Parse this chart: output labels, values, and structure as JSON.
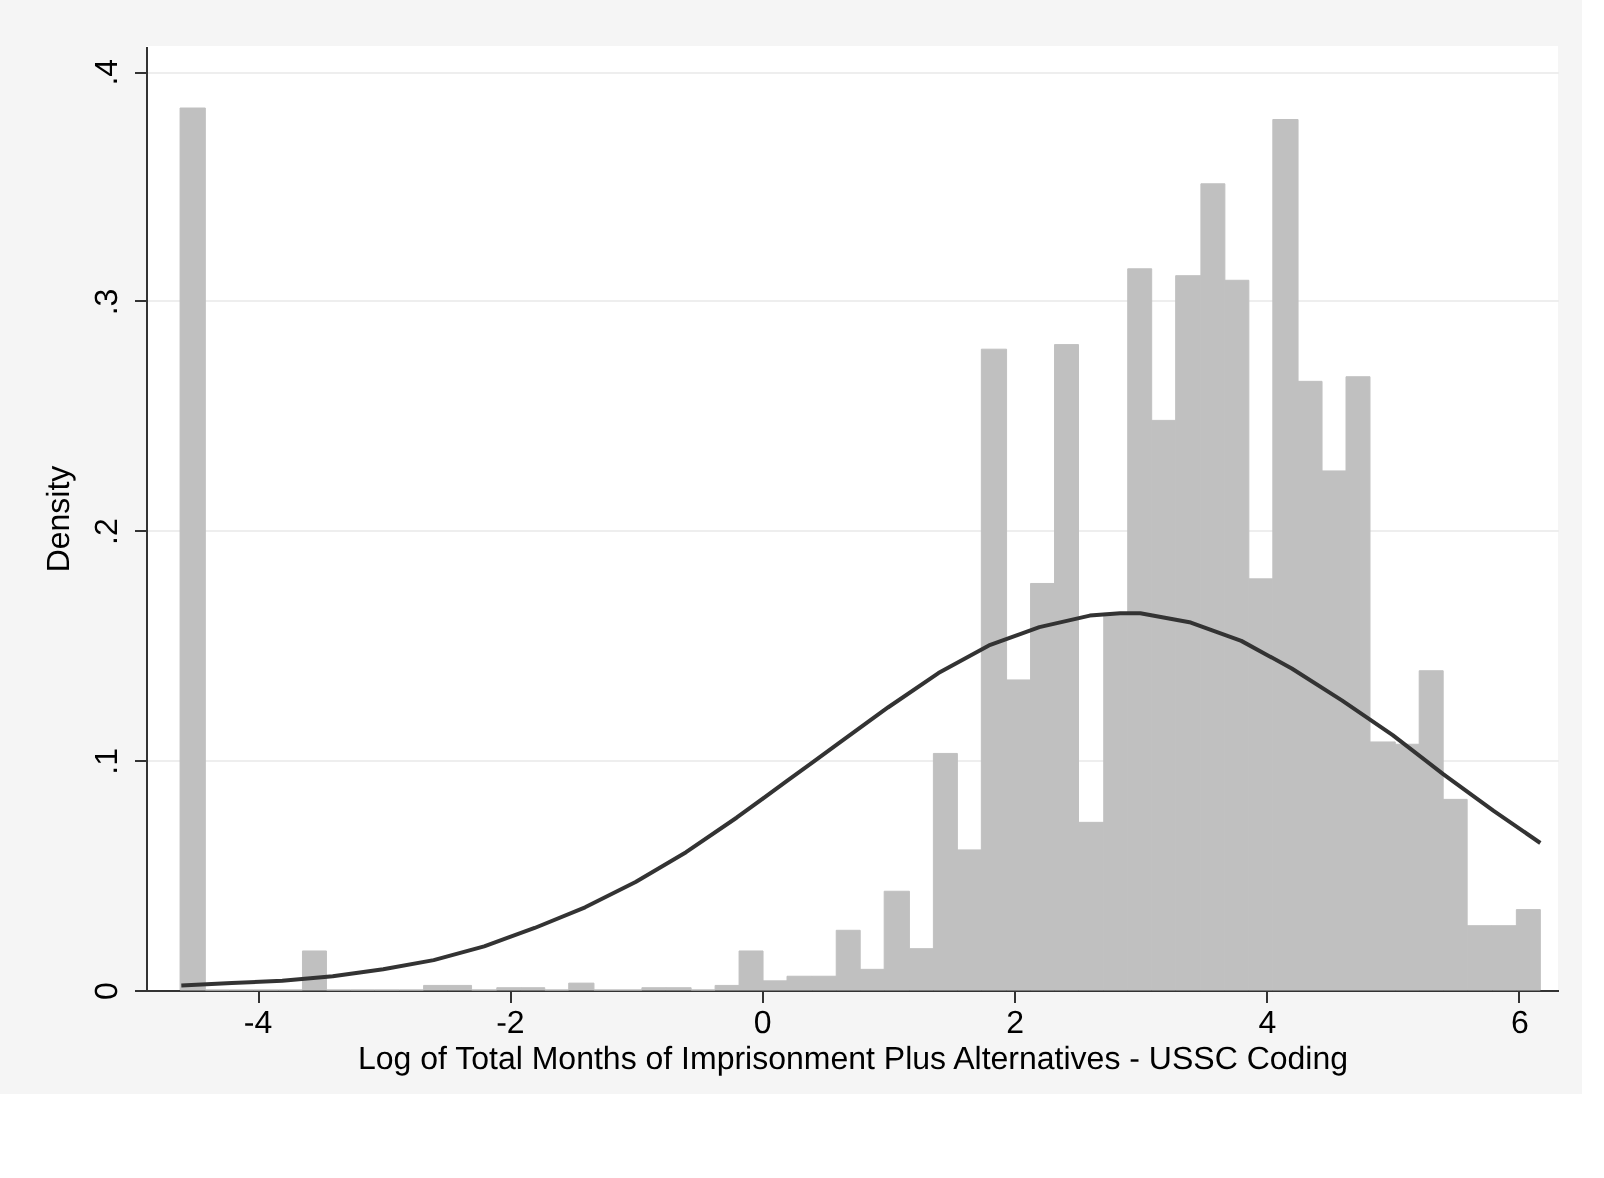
{
  "chart_data": {
    "type": "histogram",
    "xlabel": "Log of Total Months of Imprisonment Plus Alternatives - USSC Coding",
    "ylabel": "Density",
    "bins": [
      -4.61,
      -4.41,
      -4.22,
      -4.03,
      -3.83,
      -3.64,
      -3.45,
      -3.26,
      -3.07,
      -2.87,
      -2.68,
      -2.49,
      -2.3,
      -2.1,
      -1.91,
      -1.72,
      -1.53,
      -1.33,
      -1.14,
      -0.95,
      -0.76,
      -0.56,
      -0.37,
      -0.18,
      0.01,
      0.2,
      0.4,
      0.59,
      0.78,
      0.97,
      1.17,
      1.36,
      1.55,
      1.74,
      1.94,
      2.13,
      2.32,
      2.51,
      2.71,
      2.9,
      3.09,
      3.28,
      3.48,
      3.67,
      3.86,
      4.05,
      4.25,
      4.44,
      4.63,
      4.82,
      5.02,
      5.21,
      5.4,
      5.59,
      5.79,
      5.98,
      6.17
    ],
    "values": [
      0.384,
      0,
      0,
      0,
      0,
      0.017,
      0,
      0,
      0,
      0,
      0.002,
      0.002,
      0,
      0.001,
      0.001,
      0,
      0.003,
      0,
      0,
      0.001,
      0.001,
      0,
      0.002,
      0.017,
      0.004,
      0.006,
      0.006,
      0.026,
      0.009,
      0.043,
      0.018,
      0.103,
      0.061,
      0.279,
      0.135,
      0.177,
      0.281,
      0.073,
      0.164,
      0.314,
      0.248,
      0.311,
      0.351,
      0.309,
      0.179,
      0.379,
      0.265,
      0.226,
      0.267,
      0.108,
      0.107,
      0.139,
      0.083,
      0.028,
      0.028,
      0.035
    ],
    "color": "#c0c0c0",
    "series": [
      {
        "type": "line",
        "color": "#333333",
        "x": [
          -4.6,
          -4.2,
          -3.8,
          -3.4,
          -3.0,
          -2.6,
          -2.2,
          -1.8,
          -1.4,
          -1.0,
          -0.6,
          -0.2,
          0.2,
          0.6,
          1.0,
          1.4,
          1.8,
          2.2,
          2.6,
          2.84,
          3.0,
          3.4,
          3.8,
          4.2,
          4.6,
          5.0,
          5.4,
          5.8,
          6.17
        ],
        "values": [
          0.002,
          0.003,
          0.004,
          0.006,
          0.009,
          0.013,
          0.019,
          0.027,
          0.036,
          0.047,
          0.06,
          0.075,
          0.091,
          0.107,
          0.123,
          0.138,
          0.15,
          0.158,
          0.163,
          0.164,
          0.164,
          0.16,
          0.152,
          0.14,
          0.126,
          0.111,
          0.094,
          0.078,
          0.064
        ]
      }
    ],
    "xlim": [
      -4.88,
      6.31
    ],
    "xticks": [
      -4,
      -2,
      0,
      2,
      4,
      6
    ],
    "ylim": [
      0,
      0.411
    ],
    "yticks": [
      0,
      {
        "value": 0.1,
        "label": ".1"
      },
      {
        "value": 0.2,
        "label": ".2"
      },
      {
        "value": 0.3,
        "label": ".3"
      },
      {
        "value": 0.4,
        "label": ".4"
      }
    ],
    "grid": "y"
  }
}
